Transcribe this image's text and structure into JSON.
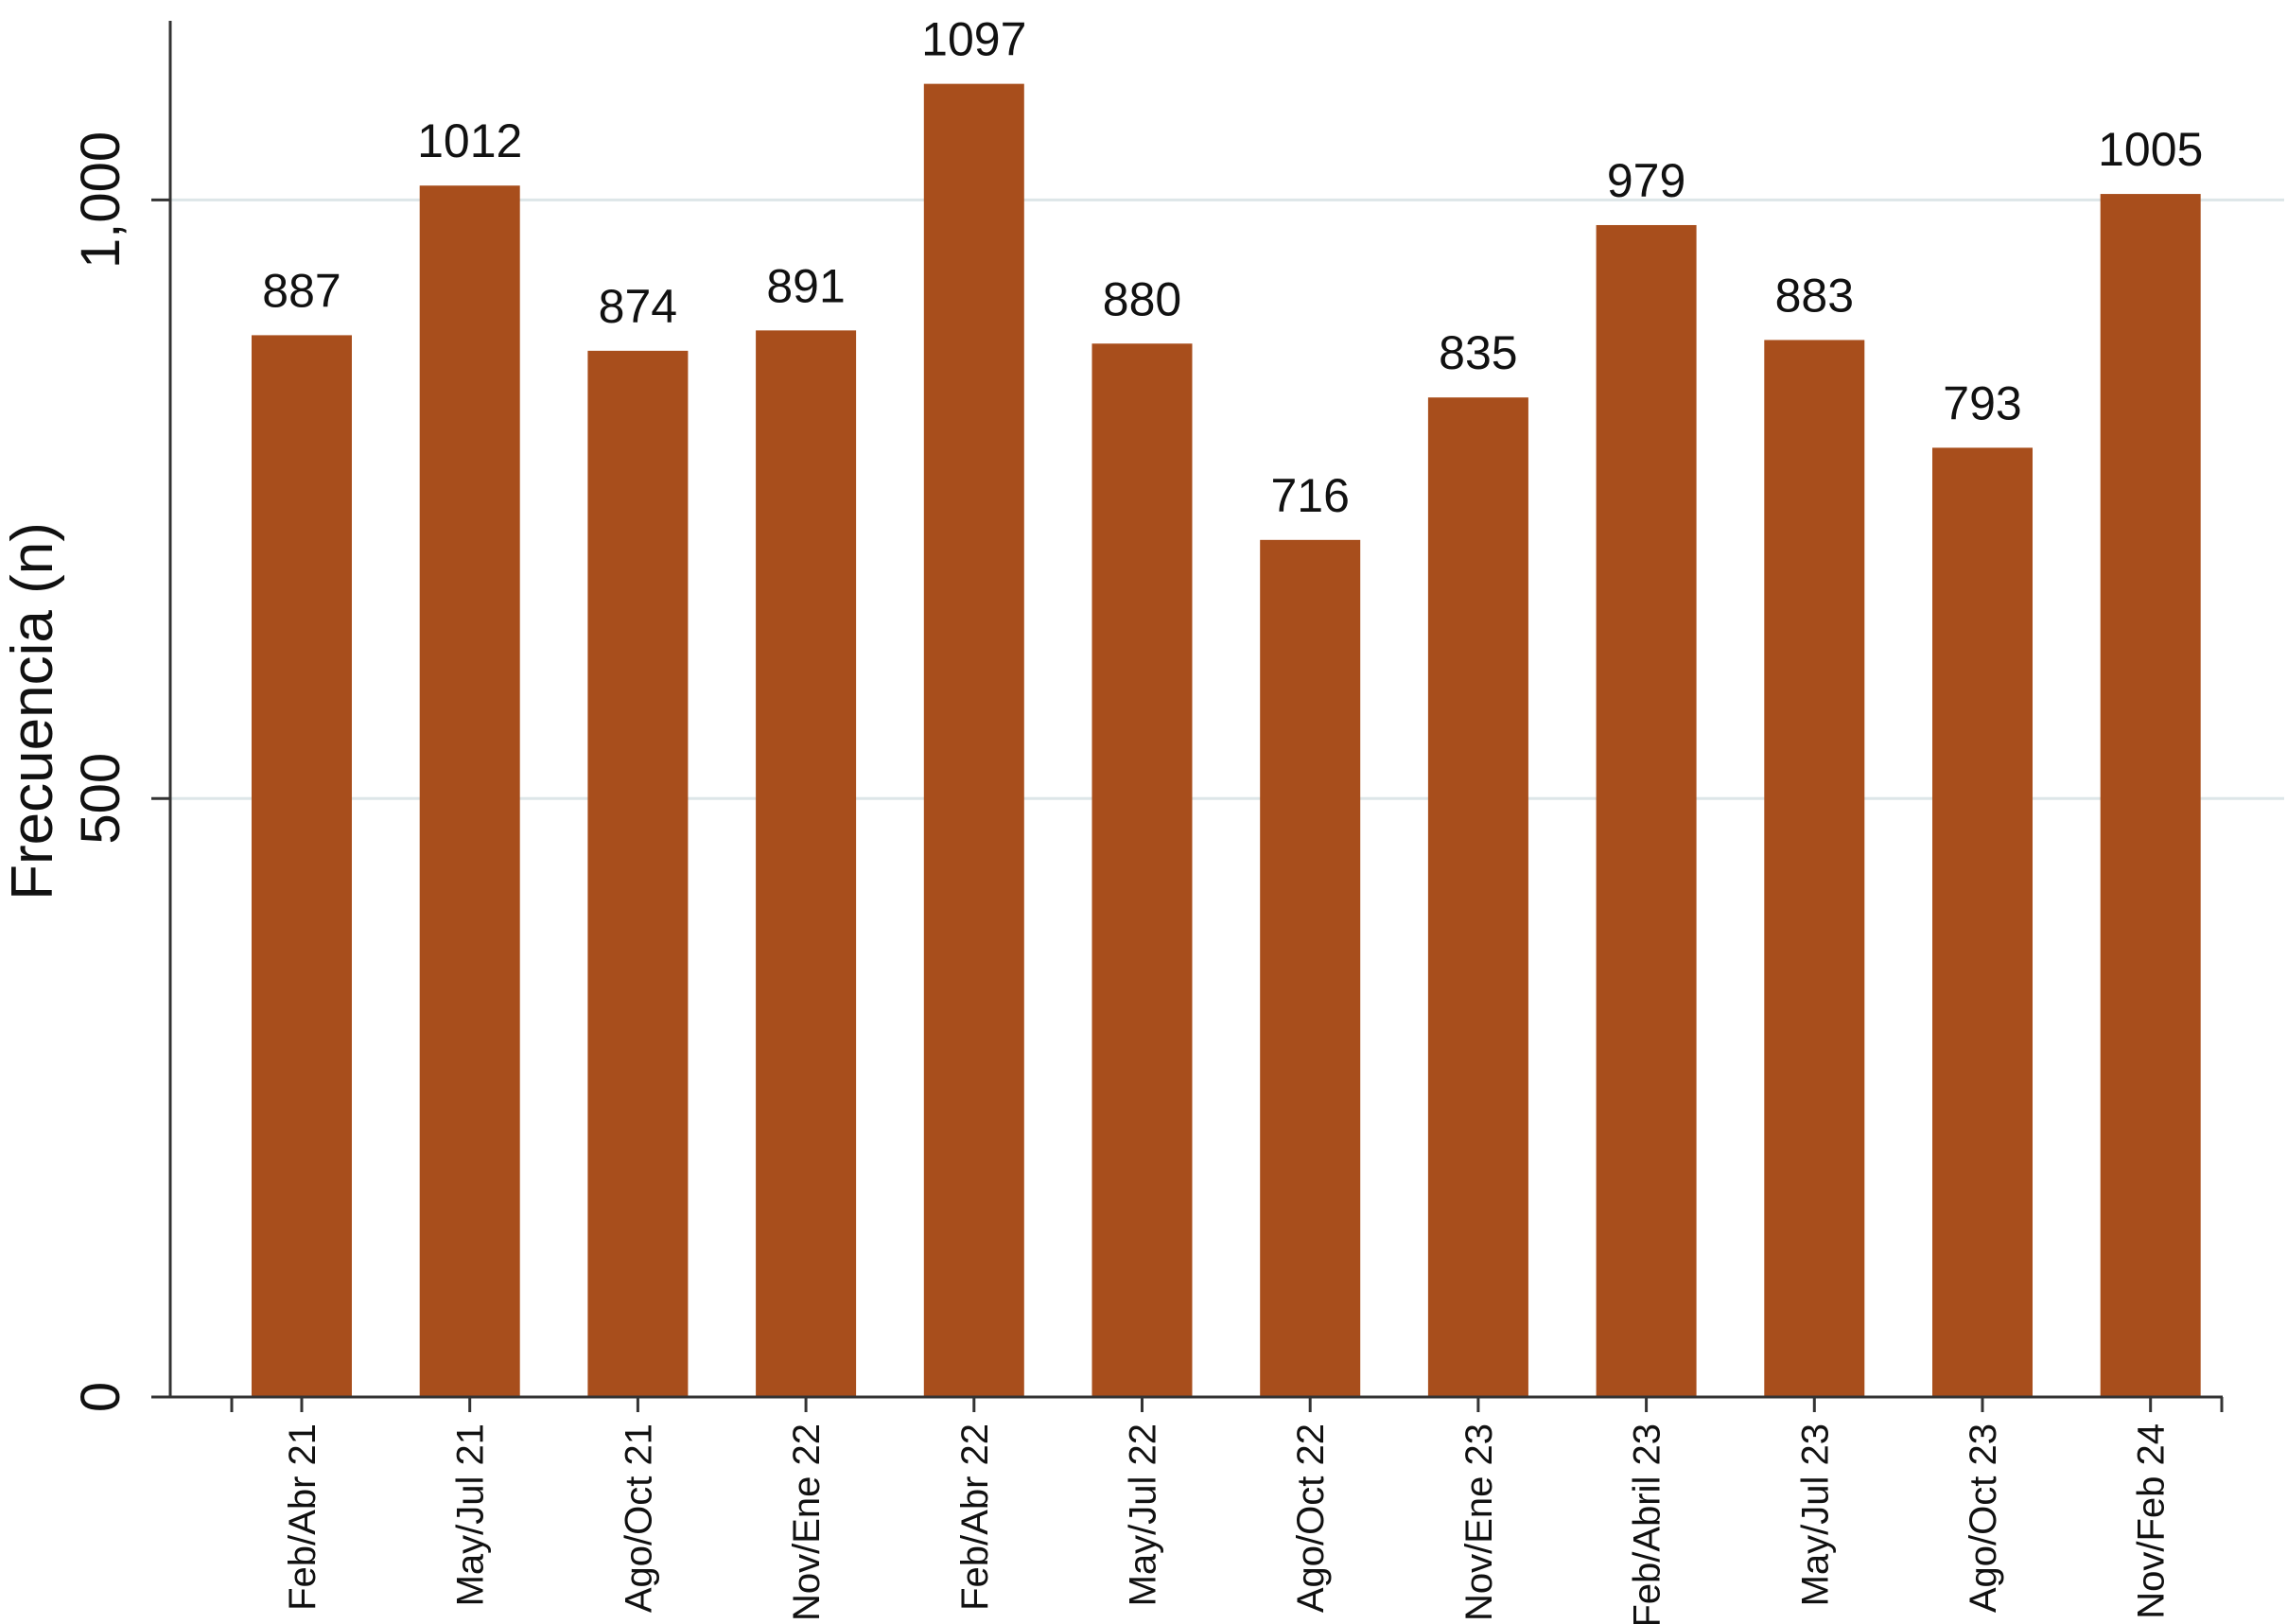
{
  "chart_data": {
    "type": "bar",
    "title": "",
    "xlabel": "",
    "ylabel": "Frecuencia (n)",
    "ylim": [
      0,
      1150
    ],
    "yticks": [
      {
        "value": 0,
        "label": "0"
      },
      {
        "value": 500,
        "label": "500"
      },
      {
        "value": 1000,
        "label": "1,000"
      }
    ],
    "grid": true,
    "bar_color": "#a84e1c",
    "categories": [
      "Feb/Abr 21",
      "May/Jul 21",
      "Ago/Oct 21",
      "Nov/Ene 22",
      "Feb/Abr 22",
      "May/Jul 22",
      "Ago/Oct 22",
      "Nov/Ene 23",
      "Feb/Abril 23",
      "May/Jul 23",
      "Ago/Oct 23",
      "Nov/Feb 24"
    ],
    "values": [
      887,
      1012,
      874,
      891,
      1097,
      880,
      716,
      835,
      979,
      883,
      793,
      1005
    ],
    "data_labels": [
      "887",
      "1012",
      "874",
      "891",
      "1097",
      "880",
      "716",
      "835",
      "979",
      "883",
      "793",
      "1005"
    ]
  }
}
